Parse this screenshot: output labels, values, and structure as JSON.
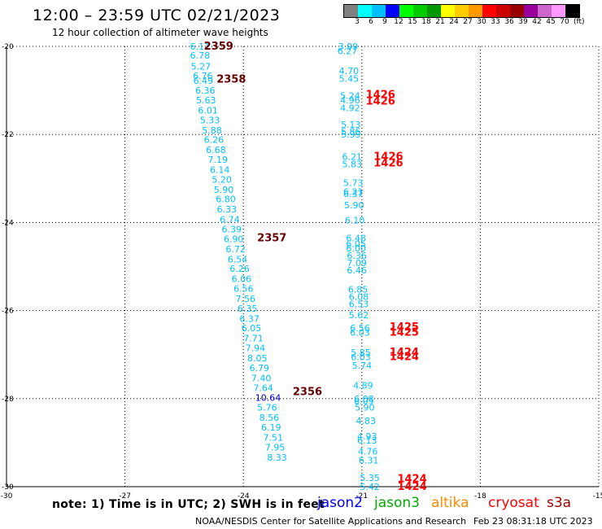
{
  "header": {
    "title": "12:00 – 23:59 UTC 02/21/2023",
    "subtitle": "12 hour collection of altimeter wave heights"
  },
  "legend": {
    "colors": [
      "#808080",
      "#00ffff",
      "#00bfff",
      "#0000ff",
      "#00ff00",
      "#00cc00",
      "#009900",
      "#ffff00",
      "#ffcc00",
      "#ff9900",
      "#ff0000",
      "#cc0000",
      "#990000",
      "#990099",
      "#cc66cc",
      "#ff99ff",
      "#000000"
    ],
    "ticks": [
      "3",
      "6",
      "9",
      "12",
      "15",
      "18",
      "21",
      "24",
      "27",
      "30",
      "33",
      "36",
      "39",
      "42",
      "45",
      "70"
    ],
    "unit": "(ft)"
  },
  "chart_data": {
    "type": "scatter",
    "x_axis": {
      "label": "",
      "range": [
        -30,
        -15
      ],
      "ticks": [
        "-30",
        "-27",
        "-24",
        "-21",
        "-18",
        "-15"
      ]
    },
    "y_axis": {
      "label": "",
      "range": [
        -20,
        -30
      ],
      "ticks": [
        "-20",
        "-22",
        "-24",
        "-26",
        "-28",
        "-30"
      ]
    },
    "grid": true,
    "series": [
      {
        "name": "jason3",
        "color": "#00bfff",
        "points": [
          {
            "x": -25.35,
            "y": -20.0,
            "v": "6.11"
          },
          {
            "x": -25.35,
            "y": -20.2,
            "v": "6.78"
          },
          {
            "x": -25.33,
            "y": -20.45,
            "v": "5.27"
          },
          {
            "x": -25.28,
            "y": -20.67,
            "v": "6.76"
          },
          {
            "x": -25.27,
            "y": -20.78,
            "v": "6.49"
          },
          {
            "x": -25.22,
            "y": -21.0,
            "v": "6.36"
          },
          {
            "x": -25.2,
            "y": -21.22,
            "v": "5.63"
          },
          {
            "x": -25.15,
            "y": -21.45,
            "v": "6.01"
          },
          {
            "x": -25.1,
            "y": -21.67,
            "v": "5.33"
          },
          {
            "x": -25.05,
            "y": -21.9,
            "v": "5.88"
          },
          {
            "x": -25.0,
            "y": -22.12,
            "v": "6.26"
          },
          {
            "x": -24.95,
            "y": -22.35,
            "v": "6.68"
          },
          {
            "x": -24.9,
            "y": -22.57,
            "v": "7.19"
          },
          {
            "x": -24.85,
            "y": -22.8,
            "v": "6.14"
          },
          {
            "x": -24.8,
            "y": -23.02,
            "v": "5.20"
          },
          {
            "x": -24.75,
            "y": -23.25,
            "v": "5.90"
          },
          {
            "x": -24.7,
            "y": -23.47,
            "v": "6.80"
          },
          {
            "x": -24.67,
            "y": -23.7,
            "v": "6.33"
          },
          {
            "x": -24.6,
            "y": -23.93,
            "v": "6.74"
          },
          {
            "x": -24.55,
            "y": -24.15,
            "v": "6.39"
          },
          {
            "x": -24.5,
            "y": -24.37,
            "v": "6.90"
          },
          {
            "x": -24.45,
            "y": -24.6,
            "v": "6.72"
          },
          {
            "x": -24.4,
            "y": -24.83,
            "v": "6.54"
          },
          {
            "x": -24.35,
            "y": -25.05,
            "v": "6.26"
          },
          {
            "x": -24.3,
            "y": -25.28,
            "v": "6.06"
          },
          {
            "x": -24.25,
            "y": -25.5,
            "v": "6.56"
          },
          {
            "x": -24.2,
            "y": -25.73,
            "v": "7.56"
          },
          {
            "x": -24.15,
            "y": -25.95,
            "v": "6.35"
          },
          {
            "x": -24.1,
            "y": -26.18,
            "v": "6.37"
          },
          {
            "x": -24.05,
            "y": -26.4,
            "v": "6.05"
          },
          {
            "x": -24.0,
            "y": -26.63,
            "v": "7.71"
          },
          {
            "x": -23.95,
            "y": -26.85,
            "v": "7.94"
          },
          {
            "x": -23.9,
            "y": -27.08,
            "v": "8.05"
          },
          {
            "x": -23.85,
            "y": -27.3,
            "v": "6.79"
          },
          {
            "x": -23.8,
            "y": -27.53,
            "v": "7.40"
          },
          {
            "x": -23.75,
            "y": -27.75,
            "v": "7.64"
          },
          {
            "x": -23.7,
            "y": -27.98,
            "v": "10.64",
            "c": "#0000cc"
          },
          {
            "x": -23.65,
            "y": -28.2,
            "v": "5.76"
          },
          {
            "x": -23.6,
            "y": -28.43,
            "v": "8.56"
          },
          {
            "x": -23.55,
            "y": -28.65,
            "v": "6.19"
          },
          {
            "x": -23.5,
            "y": -28.88,
            "v": "7.51"
          },
          {
            "x": -23.45,
            "y": -29.1,
            "v": "7.95"
          },
          {
            "x": -23.4,
            "y": -29.33,
            "v": "8.33"
          }
        ]
      },
      {
        "name": "cryosat",
        "color": "#00bfff",
        "points": [
          {
            "x": -21.6,
            "y": -20.0,
            "v": "3.99"
          },
          {
            "x": -21.62,
            "y": -20.1,
            "v": "6.27"
          },
          {
            "x": -21.58,
            "y": -20.55,
            "v": "4.70"
          },
          {
            "x": -21.58,
            "y": -20.73,
            "v": "5.45"
          },
          {
            "x": -21.55,
            "y": -21.12,
            "v": "5.24"
          },
          {
            "x": -21.55,
            "y": -21.22,
            "v": "4.96"
          },
          {
            "x": -21.55,
            "y": -21.4,
            "v": "4.92"
          },
          {
            "x": -21.53,
            "y": -21.77,
            "v": "5.13"
          },
          {
            "x": -21.53,
            "y": -21.93,
            "v": "5.86"
          },
          {
            "x": -21.53,
            "y": -22.0,
            "v": "5.99"
          },
          {
            "x": -21.5,
            "y": -22.5,
            "v": "6.21"
          },
          {
            "x": -21.5,
            "y": -22.67,
            "v": "5.83"
          },
          {
            "x": -21.47,
            "y": -23.1,
            "v": "5.73"
          },
          {
            "x": -21.47,
            "y": -23.3,
            "v": "6.21"
          },
          {
            "x": -21.47,
            "y": -23.35,
            "v": "6.37"
          },
          {
            "x": -21.45,
            "y": -23.6,
            "v": "5.90"
          },
          {
            "x": -21.43,
            "y": -23.95,
            "v": "6.10"
          },
          {
            "x": -21.4,
            "y": -24.35,
            "v": "6.48"
          },
          {
            "x": -21.4,
            "y": -24.48,
            "v": "6.05"
          },
          {
            "x": -21.4,
            "y": -24.58,
            "v": "6.00"
          },
          {
            "x": -21.38,
            "y": -24.75,
            "v": "6.36"
          },
          {
            "x": -21.38,
            "y": -24.92,
            "v": "7.09"
          },
          {
            "x": -21.38,
            "y": -25.08,
            "v": "6.46"
          },
          {
            "x": -21.35,
            "y": -25.52,
            "v": "6.85"
          },
          {
            "x": -21.33,
            "y": -25.68,
            "v": "6.08"
          },
          {
            "x": -21.33,
            "y": -25.85,
            "v": "6.53"
          },
          {
            "x": -21.33,
            "y": -26.1,
            "v": "5.62"
          },
          {
            "x": -21.3,
            "y": -26.4,
            "v": "6.56"
          },
          {
            "x": -21.3,
            "y": -26.5,
            "v": "6.03"
          },
          {
            "x": -21.28,
            "y": -26.95,
            "v": "5.85"
          },
          {
            "x": -21.28,
            "y": -27.05,
            "v": "6.03"
          },
          {
            "x": -21.25,
            "y": -27.25,
            "v": "5.74"
          },
          {
            "x": -21.22,
            "y": -27.7,
            "v": "4.89"
          },
          {
            "x": -21.2,
            "y": -28.0,
            "v": "6.08"
          },
          {
            "x": -21.2,
            "y": -28.05,
            "v": "6.05"
          },
          {
            "x": -21.18,
            "y": -28.2,
            "v": "5.90"
          },
          {
            "x": -21.15,
            "y": -28.5,
            "v": "4.83"
          },
          {
            "x": -21.12,
            "y": -28.85,
            "v": "4.93"
          },
          {
            "x": -21.12,
            "y": -28.95,
            "v": "6.13"
          },
          {
            "x": -21.1,
            "y": -29.2,
            "v": "4.76"
          },
          {
            "x": -21.08,
            "y": -29.4,
            "v": "6.31"
          },
          {
            "x": -21.05,
            "y": -29.8,
            "v": "5.35"
          },
          {
            "x": -21.05,
            "y": -30.0,
            "v": "5.42"
          }
        ]
      }
    ],
    "time_labels": [
      {
        "x": -25.0,
        "y": -20.0,
        "v": "2359",
        "c": "#660000"
      },
      {
        "x": -24.68,
        "y": -20.75,
        "v": "2358",
        "c": "#660000"
      },
      {
        "x": -23.65,
        "y": -24.35,
        "v": "2357",
        "c": "#660000"
      },
      {
        "x": -22.75,
        "y": -27.85,
        "v": "2356",
        "c": "#660000"
      },
      {
        "x": -20.9,
        "y": -21.1,
        "v": "1426",
        "c": "#ff0000"
      },
      {
        "x": -20.9,
        "y": -21.25,
        "v": "1426",
        "c": "#ff0000"
      },
      {
        "x": -20.7,
        "y": -22.5,
        "v": "1426",
        "c": "#ff0000"
      },
      {
        "x": -20.7,
        "y": -22.65,
        "v": "1426",
        "c": "#ff0000"
      },
      {
        "x": -20.3,
        "y": -26.38,
        "v": "1425",
        "c": "#ff0000"
      },
      {
        "x": -20.3,
        "y": -26.5,
        "v": "1425",
        "c": "#ff0000"
      },
      {
        "x": -20.3,
        "y": -26.95,
        "v": "1424",
        "c": "#ff0000"
      },
      {
        "x": -20.3,
        "y": -27.05,
        "v": "1424",
        "c": "#ff0000"
      },
      {
        "x": -20.1,
        "y": -29.82,
        "v": "1424",
        "c": "#ff0000"
      },
      {
        "x": -20.1,
        "y": -30.0,
        "v": "1424",
        "c": "#ff0000"
      }
    ]
  },
  "footer": {
    "note": "note: 1) Time is in UTC; 2) SWH is in feet",
    "satellites": [
      {
        "label": "jason2",
        "color": "#0000ff"
      },
      {
        "label": "jason3",
        "color": "#00aa00"
      },
      {
        "label": "altika",
        "color": "#ff8800"
      },
      {
        "label": "cryosat",
        "color": "#ff0000"
      },
      {
        "label": "s3a",
        "color": "#990000"
      }
    ],
    "credit": "NOAA/NESDIS Center for Satellite Applications and Research",
    "timestamp": "Feb 23 08:31:18 UTC 2023"
  }
}
